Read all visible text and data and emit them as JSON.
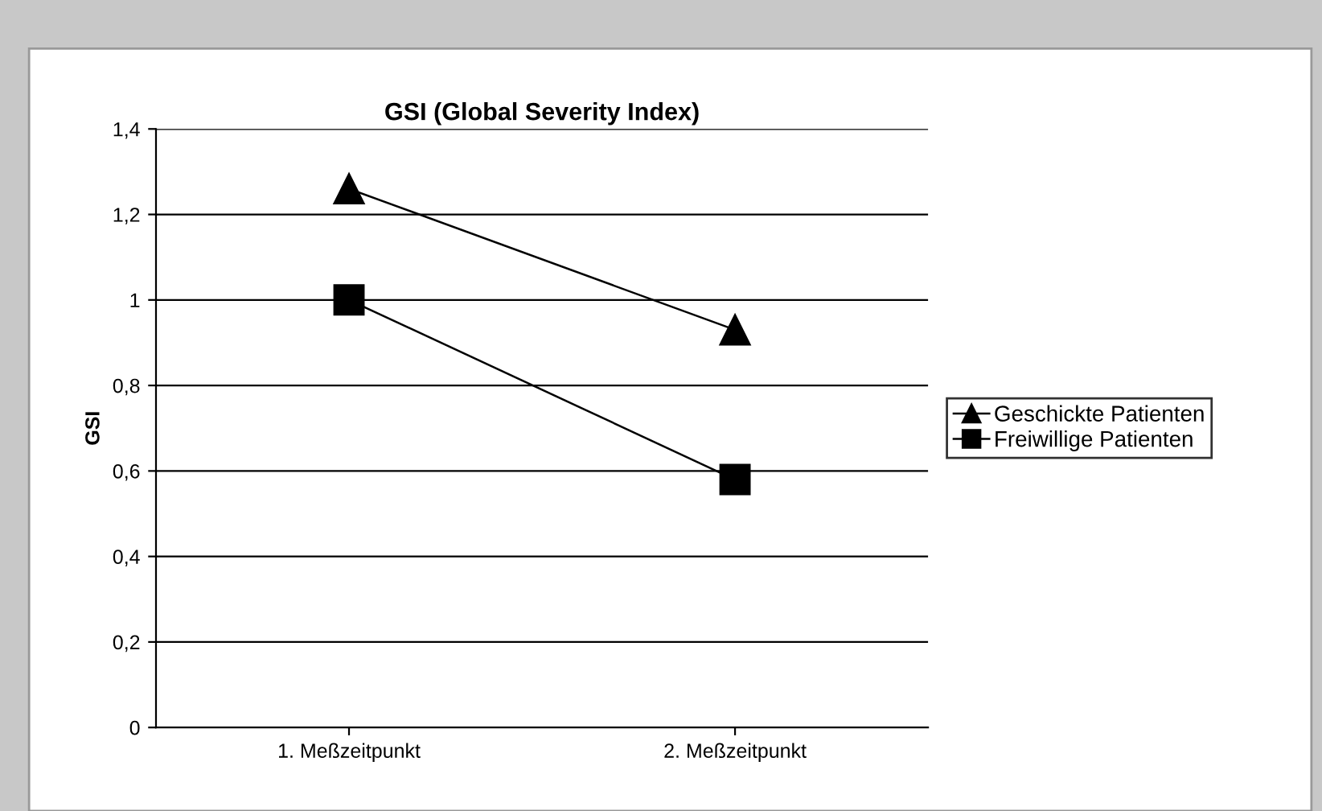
{
  "chart_data": {
    "type": "line",
    "title": "GSI (Global Severity Index)",
    "ylabel": "GSI",
    "categories": [
      "1. Meßzeitpunkt",
      "2. Meßzeitpunkt"
    ],
    "series": [
      {
        "name": "Geschickte Patienten",
        "color": "#000000",
        "marker": "triangle",
        "values": [
          1.26,
          0.93
        ]
      },
      {
        "name": "Freiwillige Patienten",
        "color": "#000000",
        "marker": "square",
        "values": [
          1.0,
          0.58
        ]
      }
    ],
    "ylim": [
      0,
      1.4
    ],
    "yticks": [
      {
        "value": 0,
        "label": "0"
      },
      {
        "value": 0.2,
        "label": "0,2"
      },
      {
        "value": 0.4,
        "label": "0,4"
      },
      {
        "value": 0.6,
        "label": "0,6"
      },
      {
        "value": 0.8,
        "label": "0,8"
      },
      {
        "value": 1,
        "label": "1"
      },
      {
        "value": 1.2,
        "label": "1,2"
      },
      {
        "value": 1.4,
        "label": "1,4"
      }
    ],
    "grid": "y",
    "legend": "right",
    "line_style": "solid"
  }
}
